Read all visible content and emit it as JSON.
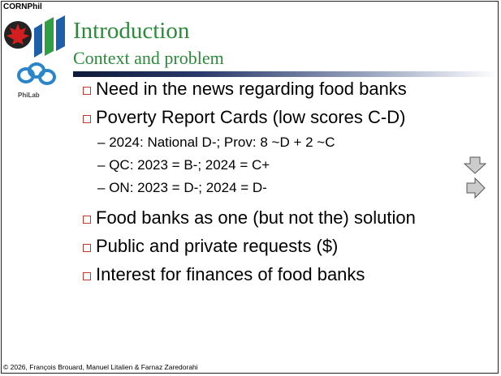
{
  "header": {
    "brand": "CORNPhil",
    "title": "Introduction",
    "subtitle": "Context and problem",
    "lab": "PhiLab"
  },
  "bullets": [
    {
      "text": "Need in the news regarding food banks"
    },
    {
      "text": "Poverty Report Cards (low scores C-D)",
      "sub": [
        "2024: National D-; Prov: 8 ~D + 2 ~C",
        "QC: 2023 = B-; 2024 = C+",
        "ON: 2023 = D-; 2024 = D-"
      ]
    },
    {
      "text": "Food banks as one (but not the) solution"
    },
    {
      "text": "Public and private requests ($)"
    },
    {
      "text": "Interest for finances of food banks"
    }
  ],
  "footer": "© 2026, François Brouard, Manuel Litalien & Farnaz Zaredorahi"
}
